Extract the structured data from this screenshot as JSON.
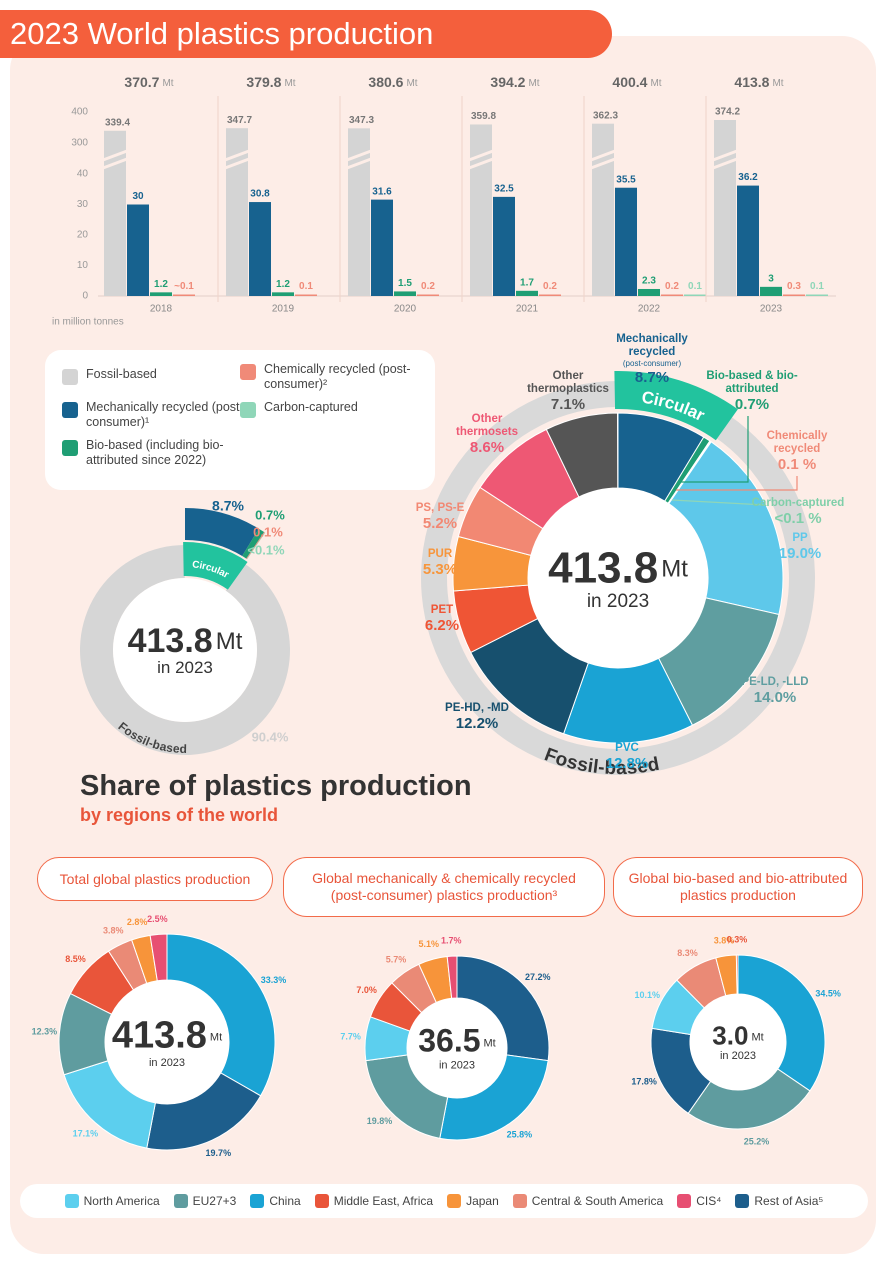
{
  "header": {
    "title": "2023 World plastics production"
  },
  "chart_data": [
    {
      "type": "bar",
      "ylabel": "in million tonnes",
      "unit": "Mt",
      "categories": [
        "2018",
        "2019",
        "2020",
        "2021",
        "2022",
        "2023"
      ],
      "totals": [
        370.7,
        379.8,
        380.6,
        394.2,
        400.4,
        413.8
      ],
      "ylim": [
        0,
        400
      ],
      "axis_break": [
        40,
        300
      ],
      "yticks": [
        0,
        10,
        20,
        30,
        40,
        300,
        400
      ],
      "series": [
        {
          "name": "Fossil-based",
          "color": "#d4d4d4",
          "values": [
            339.4,
            347.7,
            347.3,
            359.8,
            362.3,
            374.2
          ]
        },
        {
          "name": "Mechanically recycled (post-consumer)¹",
          "color": "#17628f",
          "values": [
            30,
            30.8,
            31.6,
            32.5,
            35.5,
            36.2
          ]
        },
        {
          "name": "Bio-based (including bio-attributed since 2022)",
          "color": "#1f9e74",
          "values": [
            1.2,
            1.2,
            1.5,
            1.7,
            2.3,
            3
          ]
        },
        {
          "name": "Chemically recycled (post-consumer)²",
          "color": "#f08a78",
          "values": [
            0.1,
            0.1,
            0.2,
            0.2,
            0.2,
            0.3
          ],
          "value_labels": [
            "~0.1",
            "0.1",
            "0.2",
            "0.2",
            "0.2",
            "0.3"
          ]
        },
        {
          "name": "Carbon-captured",
          "color": "#8fd6b8",
          "values": [
            null,
            null,
            null,
            null,
            0.1,
            0.1
          ]
        }
      ]
    },
    {
      "type": "donut",
      "total": 413.8,
      "unit": "Mt",
      "subtitle": "in 2023",
      "values": [
        8.7,
        0.7,
        0.1,
        0.05,
        90.4
      ],
      "value_labels": [
        "8.7%",
        "0.7%",
        "0.1%",
        "<0.1%",
        "90.4%"
      ],
      "colors": [
        "#17628f",
        "#1f9e74",
        "#f08a78",
        "#8fd6b8",
        "#d6d6d6"
      ],
      "groups": [
        "Circular",
        "Fossil-based"
      ]
    },
    {
      "type": "donut",
      "total": 413.8,
      "unit": "Mt",
      "subtitle": "in 2023",
      "categories": [
        "Mechanically recycled",
        "Bio-based & bio-attributed",
        "Chemically recycled",
        "Carbon-captured",
        "PP",
        "PE-LD, -LLD",
        "PVC",
        "PE-HD, -MD",
        "PET",
        "PUR",
        "PS, PS-E",
        "Other thermosets",
        "Other thermoplastics"
      ],
      "annotation": "(post-consumer)",
      "values": [
        8.7,
        0.7,
        0.1,
        0.05,
        19.0,
        14.0,
        12.8,
        12.2,
        6.2,
        5.3,
        5.2,
        8.6,
        7.1
      ],
      "value_labels": [
        "8.7%",
        "0.7%",
        "0.1 %",
        "<0.1 %",
        "19.0%",
        "14.0%",
        "12.8%",
        "12.2%",
        "6.2%",
        "5.3%",
        "5.2%",
        "8.6%",
        "7.1%"
      ],
      "colors": [
        "#17628f",
        "#1f9e74",
        "#f08a78",
        "#8fd6b8",
        "#5ec8ea",
        "#5f9ea0",
        "#1aa3d4",
        "#17506e",
        "#ef5535",
        "#f7953b",
        "#f28873",
        "#ee5874",
        "#555555"
      ],
      "groups": [
        "Circular",
        "Fossil-based"
      ]
    },
    {
      "type": "donut",
      "title": "Total global plastics production",
      "total": 413.8,
      "unit": "Mt",
      "subtitle": "in 2023",
      "values": [
        17.1,
        12.3,
        33.3,
        8.5,
        2.8,
        3.8,
        2.5,
        19.7
      ],
      "value_labels": [
        "17.1%",
        "12.3%",
        "33.3%",
        "8.5%",
        "2.8%",
        "3.8%",
        "2.5%",
        "19.7%"
      ]
    },
    {
      "type": "donut",
      "title": "Global mechanically & chemically recycled (post-consumer) plastics production³",
      "total": 36.5,
      "unit": "Mt",
      "subtitle": "in 2023",
      "values": [
        7.7,
        19.8,
        25.8,
        7.0,
        5.1,
        5.7,
        1.7,
        27.2
      ],
      "value_labels": [
        "7.7%",
        "19.8%",
        "25.8%",
        "7.0%",
        "5.1%",
        "5.7%",
        "1.7%",
        "27.2%"
      ]
    },
    {
      "type": "donut",
      "title": "Global bio-based and bio-attributed plastics production",
      "total": 3.0,
      "total_label": "3.0",
      "unit": "Mt",
      "subtitle": "in 2023",
      "values": [
        10.1,
        25.2,
        34.5,
        0.3,
        3.8,
        8.3,
        null,
        17.8
      ],
      "value_labels": [
        "10.1%",
        "25.2%",
        "34.5%",
        "0.3%",
        "3.8%",
        "8.3%",
        null,
        "17.8%"
      ]
    }
  ],
  "section": {
    "title": "Share of plastics production",
    "subtitle": "by regions of the world"
  },
  "region_legend": {
    "categories": [
      "North America",
      "EU27+3",
      "China",
      "Middle East, Africa",
      "Japan",
      "Central & South America",
      "CIS⁴",
      "Rest of Asia⁵"
    ],
    "colors": [
      "#5ccfee",
      "#5f9c9f",
      "#1aa3d4",
      "#e9553a",
      "#f7943a",
      "#ea8a76",
      "#e74f72",
      "#1d5e8c"
    ]
  }
}
